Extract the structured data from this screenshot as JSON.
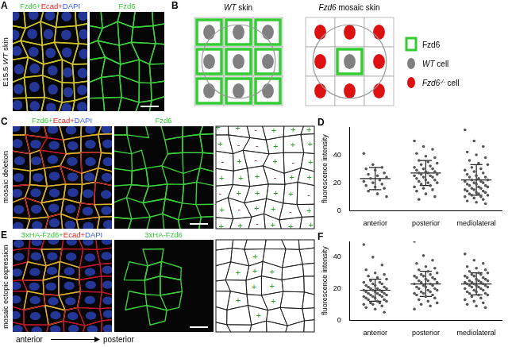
{
  "panel_letters": [
    "A",
    "B",
    "C",
    "D",
    "E",
    "F"
  ],
  "A": {
    "side_label": [
      {
        "text": "E15.5 "
      },
      {
        "text": "WT",
        "italic": true
      },
      {
        "text": " skin"
      }
    ],
    "image_labels": [
      [
        {
          "text": "Fzd6+",
          "color": "#33cc33"
        },
        {
          "text": "Ecad+",
          "color": "#e02020"
        },
        {
          "text": "DAPI",
          "color": "#3355ff"
        }
      ],
      [
        {
          "text": "Fzd6",
          "color": "#33cc33"
        }
      ]
    ]
  },
  "B": {
    "left_title": [
      {
        "text": "WT",
        "italic": true
      },
      {
        "text": " skin"
      }
    ],
    "right_title": [
      {
        "text": "Fzd6",
        "italic": true
      },
      {
        "text": " mosaic skin"
      }
    ],
    "legend": [
      {
        "label": [
          {
            "text": "Fzd6"
          }
        ],
        "color": "#33cc33"
      },
      {
        "label": [
          {
            "text": "WT",
            "italic": true
          },
          {
            "text": " cell"
          }
        ],
        "color": "#808080"
      },
      {
        "label": [
          {
            "text": "Fzd6",
            "italic": true
          },
          {
            "text": "-/-",
            "italic": true,
            "sup": true
          },
          {
            "text": " cell"
          }
        ],
        "color": "#dd1111"
      }
    ]
  },
  "C": {
    "side_label": [
      {
        "text": "mosaic deletion"
      }
    ],
    "image_labels": [
      [
        {
          "text": "Fzd6+",
          "color": "#33cc33"
        },
        {
          "text": "Ecad+",
          "color": "#e02020"
        },
        {
          "text": "DAPI",
          "color": "#3355ff"
        }
      ],
      [
        {
          "text": "Fzd6",
          "color": "#33cc33"
        }
      ]
    ],
    "cell_marks": [
      "+",
      "+",
      "-",
      "+",
      "+",
      "+",
      "+",
      "-",
      "-",
      "+",
      "+",
      "+",
      "-",
      "+",
      "-",
      "+",
      "-",
      "+",
      "+",
      "+",
      "+",
      "-",
      "+",
      "+",
      "-",
      "+",
      "+",
      "+",
      "+",
      "-",
      "+",
      "-",
      "+",
      "+",
      "-",
      "+",
      "+",
      "+",
      "-",
      "+",
      "+",
      "+"
    ]
  },
  "E": {
    "side_label": [
      {
        "text": "mosaic ectopic expression"
      }
    ],
    "image_labels": [
      [
        {
          "text": "3xHA-Fzd6+",
          "color": "#33cc33"
        },
        {
          "text": "Ecad+",
          "color": "#e02020"
        },
        {
          "text": "DAPI",
          "color": "#3355ff"
        }
      ],
      [
        {
          "text": "3xHA-Fzd6",
          "color": "#33cc33"
        }
      ]
    ],
    "cell_marks": [
      null,
      null,
      null,
      null,
      null,
      null,
      null,
      null,
      "+",
      null,
      null,
      null,
      null,
      "+",
      "+",
      "+",
      null,
      null,
      null,
      null,
      "+",
      "+",
      null,
      null,
      null,
      "+",
      null,
      "+",
      null,
      null,
      null,
      null,
      "+",
      null,
      null,
      null,
      null,
      null,
      null,
      null,
      null,
      null
    ]
  },
  "axis_caption": {
    "from": "anterior",
    "to": "posterior"
  },
  "chart_data": [
    {
      "type": "scatter",
      "y_label": "fluorescence intensity",
      "categories": [
        "anterior",
        "posterior",
        "mediolateral"
      ],
      "values": [
        [
          41,
          33,
          31,
          30,
          29,
          27,
          26,
          25,
          24,
          23,
          22,
          21,
          20,
          19,
          18,
          17,
          16,
          14,
          12,
          10
        ],
        [
          50,
          46,
          44,
          41,
          39,
          38,
          36,
          35,
          34,
          33,
          32,
          31,
          30,
          30,
          29,
          28,
          28,
          27,
          27,
          26,
          26,
          25,
          25,
          24,
          24,
          23,
          22,
          22,
          21,
          20,
          20,
          19,
          18,
          17,
          16,
          15,
          14,
          12,
          10,
          8
        ],
        [
          58,
          50,
          46,
          42,
          40,
          38,
          36,
          34,
          33,
          31,
          30,
          29,
          28,
          27,
          26,
          25,
          24,
          24,
          23,
          22,
          22,
          21,
          21,
          20,
          20,
          19,
          19,
          18,
          18,
          17,
          17,
          16,
          16,
          15,
          15,
          14,
          14,
          13,
          13,
          12,
          12,
          11,
          11,
          10,
          10,
          9,
          8,
          7,
          6,
          5
        ]
      ],
      "means": [
        23,
        27,
        22
      ],
      "sd": [
        8,
        9,
        11
      ],
      "color": "#555555",
      "marker": "circle",
      "ylim": [
        0,
        60
      ],
      "yticks": [
        0,
        20,
        40
      ],
      "grid": false
    },
    {
      "type": "scatter",
      "y_label": "fluorescence intensity",
      "categories": [
        "anterior",
        "posterior",
        "mediolateral"
      ],
      "values": [
        [
          48,
          40,
          35,
          32,
          30,
          29,
          28,
          27,
          26,
          25,
          24,
          24,
          23,
          23,
          22,
          22,
          21,
          21,
          20,
          20,
          20,
          19,
          19,
          19,
          18,
          18,
          18,
          17,
          17,
          17,
          16,
          16,
          16,
          15,
          15,
          15,
          14,
          14,
          13,
          13,
          12,
          12,
          11,
          11,
          10,
          10,
          9,
          8,
          7,
          5
        ],
        [
          50,
          41,
          38,
          36,
          34,
          33,
          32,
          31,
          30,
          29,
          29,
          28,
          28,
          27,
          27,
          26,
          26,
          25,
          25,
          24,
          24,
          23,
          23,
          22,
          22,
          21,
          21,
          20,
          20,
          19,
          19,
          18,
          18,
          17,
          17,
          16,
          16,
          15,
          14,
          13,
          12,
          11,
          10,
          9,
          7
        ],
        [
          42,
          38,
          36,
          34,
          33,
          32,
          31,
          30,
          30,
          29,
          29,
          28,
          28,
          27,
          27,
          26,
          26,
          25,
          25,
          25,
          24,
          24,
          24,
          23,
          23,
          23,
          22,
          22,
          22,
          21,
          21,
          21,
          20,
          20,
          19,
          19,
          18,
          18,
          17,
          17,
          16,
          16,
          15,
          14,
          13,
          12,
          11,
          10,
          9,
          8
        ]
      ],
      "means": [
        19,
        23,
        23
      ],
      "sd": [
        7,
        8,
        7
      ],
      "color": "#555555",
      "marker": "circle",
      "ylim": [
        0,
        50
      ],
      "yticks": [
        0,
        20,
        40
      ],
      "grid": false
    }
  ]
}
